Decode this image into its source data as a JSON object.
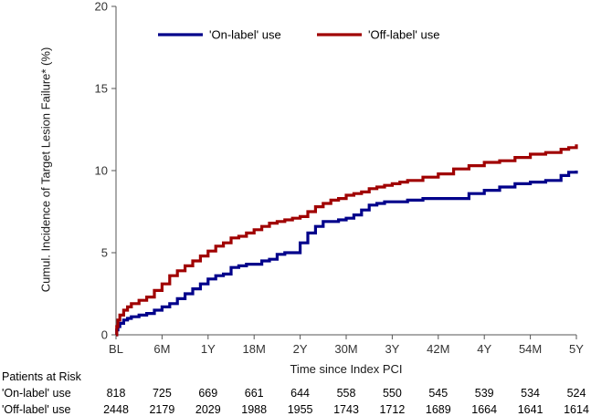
{
  "chart_data": {
    "type": "line",
    "title": "",
    "xlabel": "Time since Index PCI",
    "ylabel": "Cumul. Incidence of Target Lesion Failure* (%)",
    "ylim": [
      0,
      20
    ],
    "xlim": [
      0,
      60
    ],
    "y_ticks": [
      0,
      5,
      10,
      15,
      20
    ],
    "x_ticks": [
      {
        "value": 0,
        "label": "BL"
      },
      {
        "value": 6,
        "label": "6M"
      },
      {
        "value": 12,
        "label": "1Y"
      },
      {
        "value": 18,
        "label": "18M"
      },
      {
        "value": 24,
        "label": "2Y"
      },
      {
        "value": 30,
        "label": "30M"
      },
      {
        "value": 36,
        "label": "3Y"
      },
      {
        "value": 42,
        "label": "42M"
      },
      {
        "value": 48,
        "label": "4Y"
      },
      {
        "value": 54,
        "label": "54M"
      },
      {
        "value": 60,
        "label": "5Y"
      }
    ],
    "grid": false,
    "legend_position": "top",
    "series": [
      {
        "name": "'On-label' use",
        "color": "#00008b",
        "step": true,
        "x": [
          0,
          0.1,
          0.25,
          0.5,
          1,
          1.5,
          2,
          3,
          4,
          5,
          6,
          7,
          8,
          9,
          10,
          11,
          12,
          13,
          14,
          15,
          16,
          17,
          18,
          19,
          20,
          21,
          22,
          23,
          24,
          25,
          26,
          27,
          28,
          29,
          30,
          31,
          32,
          33,
          34,
          35,
          36,
          37,
          38,
          40,
          42,
          44,
          46,
          48,
          50,
          52,
          54,
          56,
          58,
          59,
          60
        ],
        "y": [
          0,
          0.3,
          0.5,
          0.7,
          0.9,
          1.0,
          1.1,
          1.2,
          1.3,
          1.5,
          1.7,
          1.9,
          2.2,
          2.5,
          2.8,
          3.1,
          3.4,
          3.6,
          3.7,
          4.1,
          4.2,
          4.3,
          4.3,
          4.5,
          4.6,
          4.9,
          5.0,
          5.0,
          5.6,
          6.2,
          6.6,
          6.9,
          6.9,
          7.0,
          7.1,
          7.3,
          7.6,
          7.9,
          8.0,
          8.1,
          8.1,
          8.1,
          8.2,
          8.3,
          8.3,
          8.3,
          8.6,
          8.8,
          9.0,
          9.2,
          9.3,
          9.4,
          9.7,
          9.9,
          10.0
        ]
      },
      {
        "name": "'Off-label' use",
        "color": "#a00000",
        "step": true,
        "x": [
          0,
          0.1,
          0.25,
          0.5,
          1,
          1.5,
          2,
          3,
          4,
          5,
          6,
          7,
          8,
          9,
          10,
          11,
          12,
          13,
          14,
          15,
          16,
          17,
          18,
          19,
          20,
          21,
          22,
          23,
          24,
          25,
          26,
          27,
          28,
          29,
          30,
          31,
          32,
          33,
          34,
          35,
          36,
          37,
          38,
          40,
          42,
          44,
          46,
          48,
          50,
          52,
          54,
          56,
          58,
          59,
          60
        ],
        "y": [
          0,
          0.5,
          0.9,
          1.2,
          1.5,
          1.7,
          1.9,
          2.1,
          2.3,
          2.7,
          3.1,
          3.6,
          3.9,
          4.2,
          4.5,
          4.8,
          5.1,
          5.4,
          5.6,
          5.9,
          6.0,
          6.2,
          6.4,
          6.6,
          6.8,
          6.9,
          7.0,
          7.1,
          7.2,
          7.5,
          7.8,
          8.0,
          8.2,
          8.3,
          8.5,
          8.6,
          8.7,
          8.9,
          9.0,
          9.1,
          9.2,
          9.3,
          9.4,
          9.6,
          9.8,
          10.1,
          10.3,
          10.5,
          10.6,
          10.8,
          11.0,
          11.1,
          11.3,
          11.4,
          11.6
        ]
      }
    ],
    "risk_table": {
      "title": "Patients at Risk",
      "rows": [
        {
          "label": "'On-label' use",
          "values": [
            "818",
            "725",
            "669",
            "661",
            "644",
            "558",
            "550",
            "545",
            "539",
            "534",
            "524"
          ]
        },
        {
          "label": "'Off-label' use",
          "values": [
            "2448",
            "2179",
            "2029",
            "1988",
            "1955",
            "1743",
            "1712",
            "1689",
            "1664",
            "1641",
            "1614"
          ]
        }
      ]
    }
  }
}
